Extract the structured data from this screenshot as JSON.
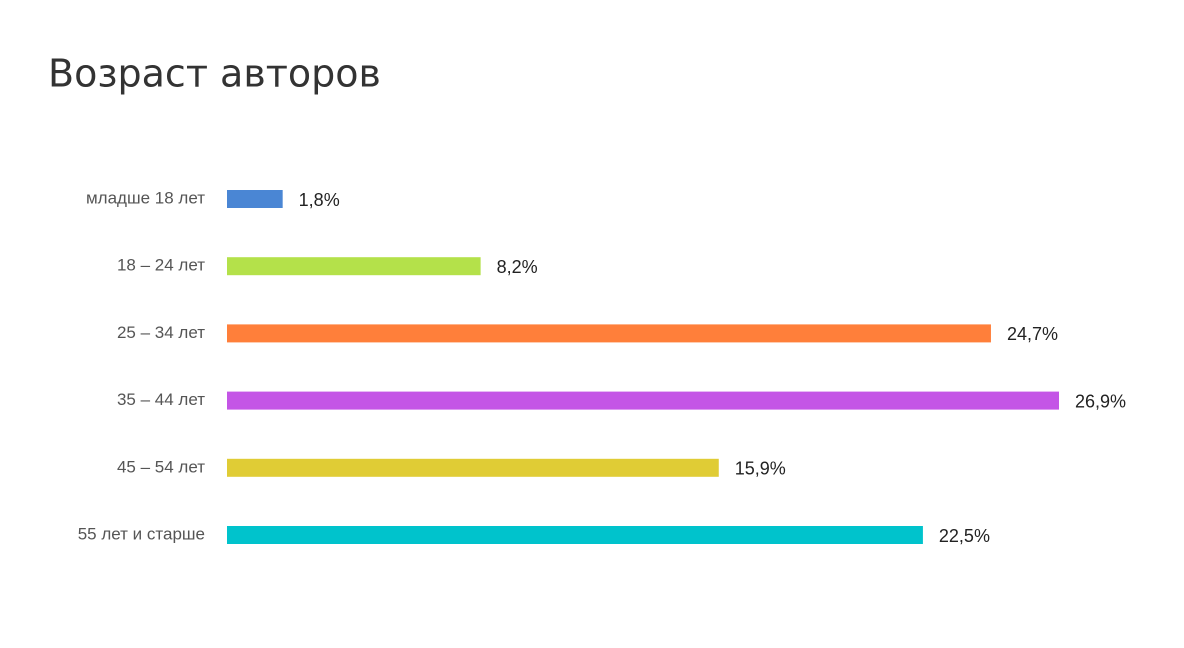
{
  "chart_data": {
    "type": "bar",
    "orientation": "horizontal",
    "title": "Возраст авторов",
    "categories": [
      "младше 18 лет",
      "18 – 24 лет",
      "25 – 34 лет",
      "35 – 44 лет",
      "45 – 54 лет",
      "55 лет и старше"
    ],
    "values": [
      1.8,
      8.2,
      24.7,
      26.9,
      15.9,
      22.5
    ],
    "value_labels": [
      "1,8%",
      "8,2%",
      "24,7%",
      "26,9%",
      "15,9%",
      "22,5%"
    ],
    "colors": [
      "#4a86d4",
      "#b4e14a",
      "#ff7f3a",
      "#c455e6",
      "#e0cc35",
      "#00c3cc"
    ]
  }
}
